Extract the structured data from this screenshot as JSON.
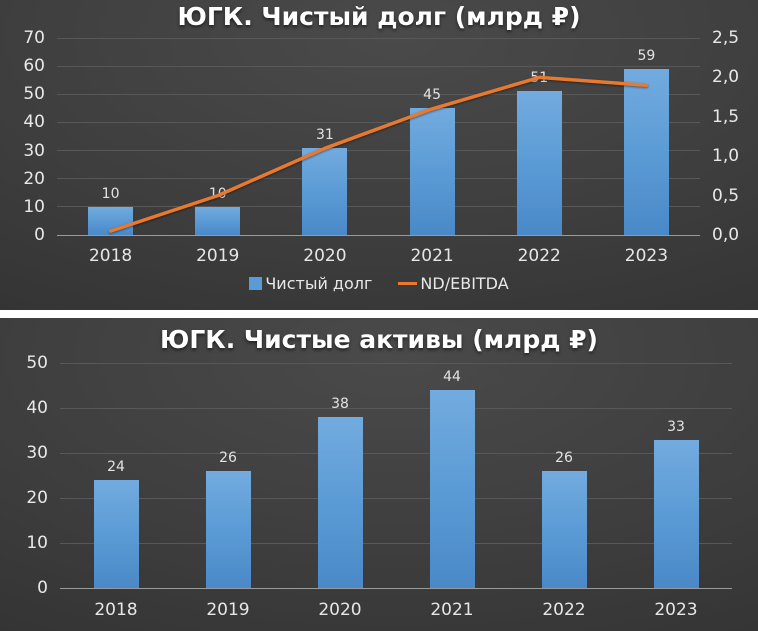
{
  "page": {
    "background_color": "#ffffff",
    "panel_background_color": "#3c3c3c",
    "separator_color": "#ffffff"
  },
  "chart_data": [
    {
      "type": "bar",
      "title": "ЮГК. Чистый долг (млрд ₽)",
      "categories": [
        "2018",
        "2019",
        "2020",
        "2021",
        "2022",
        "2023"
      ],
      "series": [
        {
          "name": "Чистый долг",
          "type": "bar",
          "axis": "left",
          "values": [
            10,
            10,
            31,
            45,
            51,
            59
          ],
          "color": "#5b9bd5"
        },
        {
          "name": "ND/EBITDA",
          "type": "line",
          "axis": "right",
          "values": [
            0.05,
            0.5,
            1.1,
            1.6,
            2.0,
            1.9
          ],
          "color": "#e8792f"
        }
      ],
      "left_axis": {
        "min": 0,
        "max": 70,
        "step": 10,
        "tick_labels": [
          "0",
          "10",
          "20",
          "30",
          "40",
          "50",
          "60",
          "70"
        ]
      },
      "right_axis": {
        "min": 0,
        "max": 2.5,
        "step": 0.5,
        "tick_labels": [
          "0,0",
          "0,5",
          "1,0",
          "1,5",
          "2,0",
          "2,5"
        ]
      },
      "grid": true,
      "legend": {
        "position": "bottom",
        "items": [
          {
            "label": "Чистый долг",
            "marker": "square",
            "color": "#5b9bd5"
          },
          {
            "label": "ND/EBITDA",
            "marker": "line",
            "color": "#e8792f"
          }
        ]
      }
    },
    {
      "type": "bar",
      "title": "ЮГК. Чистые активы (млрд ₽)",
      "categories": [
        "2018",
        "2019",
        "2020",
        "2021",
        "2022",
        "2023"
      ],
      "series": [
        {
          "name": "Чистые активы",
          "type": "bar",
          "axis": "left",
          "values": [
            24,
            26,
            38,
            44,
            26,
            33
          ],
          "color": "#5b9bd5"
        }
      ],
      "left_axis": {
        "min": 0,
        "max": 50,
        "step": 10,
        "tick_labels": [
          "0",
          "10",
          "20",
          "30",
          "40",
          "50"
        ]
      },
      "grid": true,
      "legend": null
    }
  ]
}
